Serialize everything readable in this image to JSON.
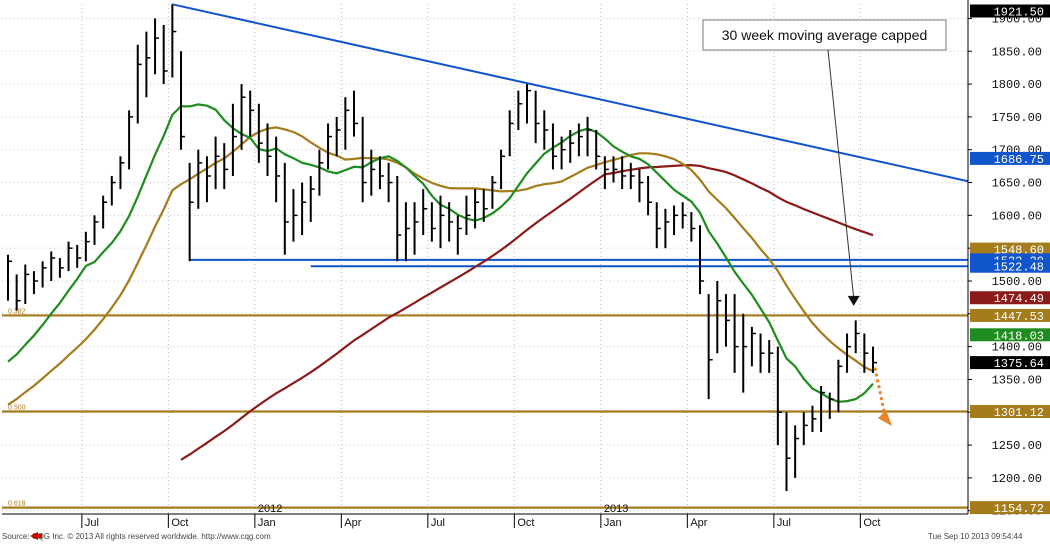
{
  "chart_data": {
    "type": "ohlc",
    "y_axis": {
      "ylim": [
        1145,
        1922
      ],
      "ticks": [
        "1900.00",
        "1850.00",
        "1800.00",
        "1750.00",
        "1700.00",
        "1650.00",
        "1600.00",
        "1550.00",
        "1500.00",
        "1450.00",
        "1400.00",
        "1350.00",
        "1300.00",
        "1250.00",
        "1200.00",
        "1150.00"
      ],
      "tick_values": [
        1900,
        1850,
        1800,
        1750,
        1700,
        1650,
        1600,
        1550,
        1500,
        1450,
        1400,
        1350,
        1300,
        1250,
        1200,
        1150
      ]
    },
    "x_axis": {
      "months": [
        "Jul",
        "Oct",
        "Jan",
        "Apr",
        "Jul",
        "Oct",
        "Jan",
        "Apr",
        "Jul",
        "Oct"
      ],
      "years": [
        "2012",
        "2013"
      ]
    },
    "price_tags": [
      {
        "label": "1921.50",
        "value": 1921.5,
        "color": "#000000"
      },
      {
        "label": "1686.75",
        "value": 1686.75,
        "color": "#1155cc"
      },
      {
        "label": "1548.60",
        "value": 1548.6,
        "color": "#a57c1b"
      },
      {
        "label": "1532.20",
        "value": 1532.2,
        "color": "#1155cc"
      },
      {
        "label": "1522.48",
        "value": 1522.48,
        "color": "#1155cc"
      },
      {
        "label": "1474.49",
        "value": 1474.49,
        "color": "#8b1a1a"
      },
      {
        "label": "1447.53",
        "value": 1447.53,
        "color": "#a57c1b"
      },
      {
        "label": "1418.03",
        "value": 1418.03,
        "color": "#1e8c1e"
      },
      {
        "label": "1375.64",
        "value": 1375.64,
        "color": "#000000"
      },
      {
        "label": "1301.12",
        "value": 1301.12,
        "color": "#a57c1b"
      },
      {
        "label": "1154.72",
        "value": 1154.72,
        "color": "#a57c1b"
      }
    ],
    "fib_levels": [
      {
        "label": "0.382",
        "value": 1447.53
      },
      {
        "label": "0.500",
        "value": 1301.12
      },
      {
        "label": "0.618",
        "value": 1154.72
      }
    ],
    "annotation": "30 week moving average capped",
    "footer_left": "Source: CQG Inc. © 2013 All rights reserved worldwide. http://www.cqg.com",
    "footer_right": "Tue Sep 10 2013 09:54:44",
    "colors": {
      "bars": "#000000",
      "trendline": "#1155cc",
      "ma_green": "#1e8c1e",
      "ma_gold": "#a57c1b",
      "ma_red": "#8b1a1a",
      "fib": "#a57c1b",
      "arrow": "#e8842c"
    },
    "bars": [
      [
        1540,
        1470,
        1530
      ],
      [
        1510,
        1455,
        1470
      ],
      [
        1525,
        1465,
        1510
      ],
      [
        1515,
        1480,
        1500
      ],
      [
        1530,
        1490,
        1520
      ],
      [
        1545,
        1500,
        1535
      ],
      [
        1535,
        1505,
        1520
      ],
      [
        1560,
        1515,
        1550
      ],
      [
        1555,
        1520,
        1535
      ],
      [
        1575,
        1530,
        1560
      ],
      [
        1600,
        1555,
        1590
      ],
      [
        1630,
        1580,
        1620
      ],
      [
        1660,
        1615,
        1650
      ],
      [
        1690,
        1640,
        1680
      ],
      [
        1760,
        1670,
        1750
      ],
      [
        1860,
        1740,
        1830
      ],
      [
        1880,
        1780,
        1840
      ],
      [
        1900,
        1815,
        1870
      ],
      [
        1890,
        1800,
        1820
      ],
      [
        1921.5,
        1810,
        1880
      ],
      [
        1850,
        1700,
        1720
      ],
      [
        1680,
        1530,
        1620
      ],
      [
        1700,
        1610,
        1680
      ],
      [
        1690,
        1620,
        1660
      ],
      [
        1720,
        1640,
        1690
      ],
      [
        1710,
        1640,
        1670
      ],
      [
        1770,
        1660,
        1720
      ],
      [
        1800,
        1700,
        1780
      ],
      [
        1790,
        1720,
        1760
      ],
      [
        1770,
        1680,
        1710
      ],
      [
        1740,
        1660,
        1690
      ],
      [
        1720,
        1620,
        1660
      ],
      [
        1680,
        1540,
        1590
      ],
      [
        1640,
        1560,
        1600
      ],
      [
        1650,
        1570,
        1620
      ],
      [
        1660,
        1590,
        1640
      ],
      [
        1700,
        1630,
        1680
      ],
      [
        1740,
        1670,
        1720
      ],
      [
        1750,
        1690,
        1730
      ],
      [
        1780,
        1700,
        1760
      ],
      [
        1790,
        1720,
        1740
      ],
      [
        1750,
        1620,
        1650
      ],
      [
        1700,
        1630,
        1670
      ],
      [
        1690,
        1640,
        1660
      ],
      [
        1680,
        1620,
        1650
      ],
      [
        1660,
        1530,
        1570
      ],
      [
        1620,
        1530,
        1580
      ],
      [
        1620,
        1540,
        1590
      ],
      [
        1640,
        1570,
        1610
      ],
      [
        1620,
        1560,
        1580
      ],
      [
        1630,
        1550,
        1600
      ],
      [
        1620,
        1560,
        1590
      ],
      [
        1600,
        1540,
        1580
      ],
      [
        1630,
        1570,
        1600
      ],
      [
        1640,
        1580,
        1620
      ],
      [
        1640,
        1590,
        1610
      ],
      [
        1660,
        1610,
        1650
      ],
      [
        1700,
        1640,
        1690
      ],
      [
        1760,
        1690,
        1740
      ],
      [
        1790,
        1730,
        1770
      ],
      [
        1800,
        1740,
        1790
      ],
      [
        1790,
        1710,
        1740
      ],
      [
        1760,
        1700,
        1730
      ],
      [
        1740,
        1670,
        1690
      ],
      [
        1720,
        1670,
        1700
      ],
      [
        1730,
        1680,
        1710
      ],
      [
        1740,
        1690,
        1720
      ],
      [
        1750,
        1690,
        1730
      ],
      [
        1730,
        1670,
        1690
      ],
      [
        1690,
        1640,
        1670
      ],
      [
        1690,
        1650,
        1670
      ],
      [
        1690,
        1640,
        1660
      ],
      [
        1680,
        1640,
        1660
      ],
      [
        1670,
        1620,
        1650
      ],
      [
        1660,
        1600,
        1620
      ],
      [
        1620,
        1550,
        1580
      ],
      [
        1610,
        1550,
        1590
      ],
      [
        1615,
        1570,
        1600
      ],
      [
        1620,
        1580,
        1600
      ],
      [
        1605,
        1560,
        1580
      ],
      [
        1585,
        1480,
        1500
      ],
      [
        1480,
        1320,
        1380
      ],
      [
        1500,
        1390,
        1470
      ],
      [
        1480,
        1400,
        1440
      ],
      [
        1480,
        1360,
        1400
      ],
      [
        1450,
        1330,
        1400
      ],
      [
        1430,
        1370,
        1420
      ],
      [
        1420,
        1360,
        1390
      ],
      [
        1410,
        1360,
        1390
      ],
      [
        1400,
        1250,
        1300
      ],
      [
        1300,
        1180,
        1230
      ],
      [
        1280,
        1200,
        1260
      ],
      [
        1300,
        1250,
        1280
      ],
      [
        1310,
        1270,
        1290
      ],
      [
        1340,
        1270,
        1330
      ],
      [
        1330,
        1290,
        1320
      ],
      [
        1380,
        1300,
        1370
      ],
      [
        1420,
        1360,
        1400
      ],
      [
        1440,
        1390,
        1420
      ],
      [
        1420,
        1360,
        1390
      ],
      [
        1400,
        1360,
        1375.64
      ]
    ]
  }
}
